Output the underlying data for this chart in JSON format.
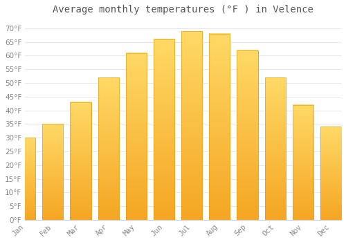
{
  "title": "Average monthly temperatures (°F ) in Velence",
  "months": [
    "Jan",
    "Feb",
    "Mar",
    "Apr",
    "May",
    "Jun",
    "Jul",
    "Aug",
    "Sep",
    "Oct",
    "Nov",
    "Dec"
  ],
  "values": [
    30,
    35,
    43,
    52,
    61,
    66,
    69,
    68,
    62,
    52,
    42,
    34
  ],
  "bar_color_bottom": "#F5A623",
  "bar_color_top": "#FFD966",
  "bar_edge_color": "#E8960A",
  "background_color": "#FFFFFF",
  "grid_color": "#E8E8E8",
  "text_color": "#888888",
  "title_color": "#555555",
  "ylim": [
    0,
    73
  ],
  "yticks": [
    0,
    5,
    10,
    15,
    20,
    25,
    30,
    35,
    40,
    45,
    50,
    55,
    60,
    65,
    70
  ],
  "title_fontsize": 10,
  "tick_fontsize": 7.5,
  "bar_width": 0.75
}
